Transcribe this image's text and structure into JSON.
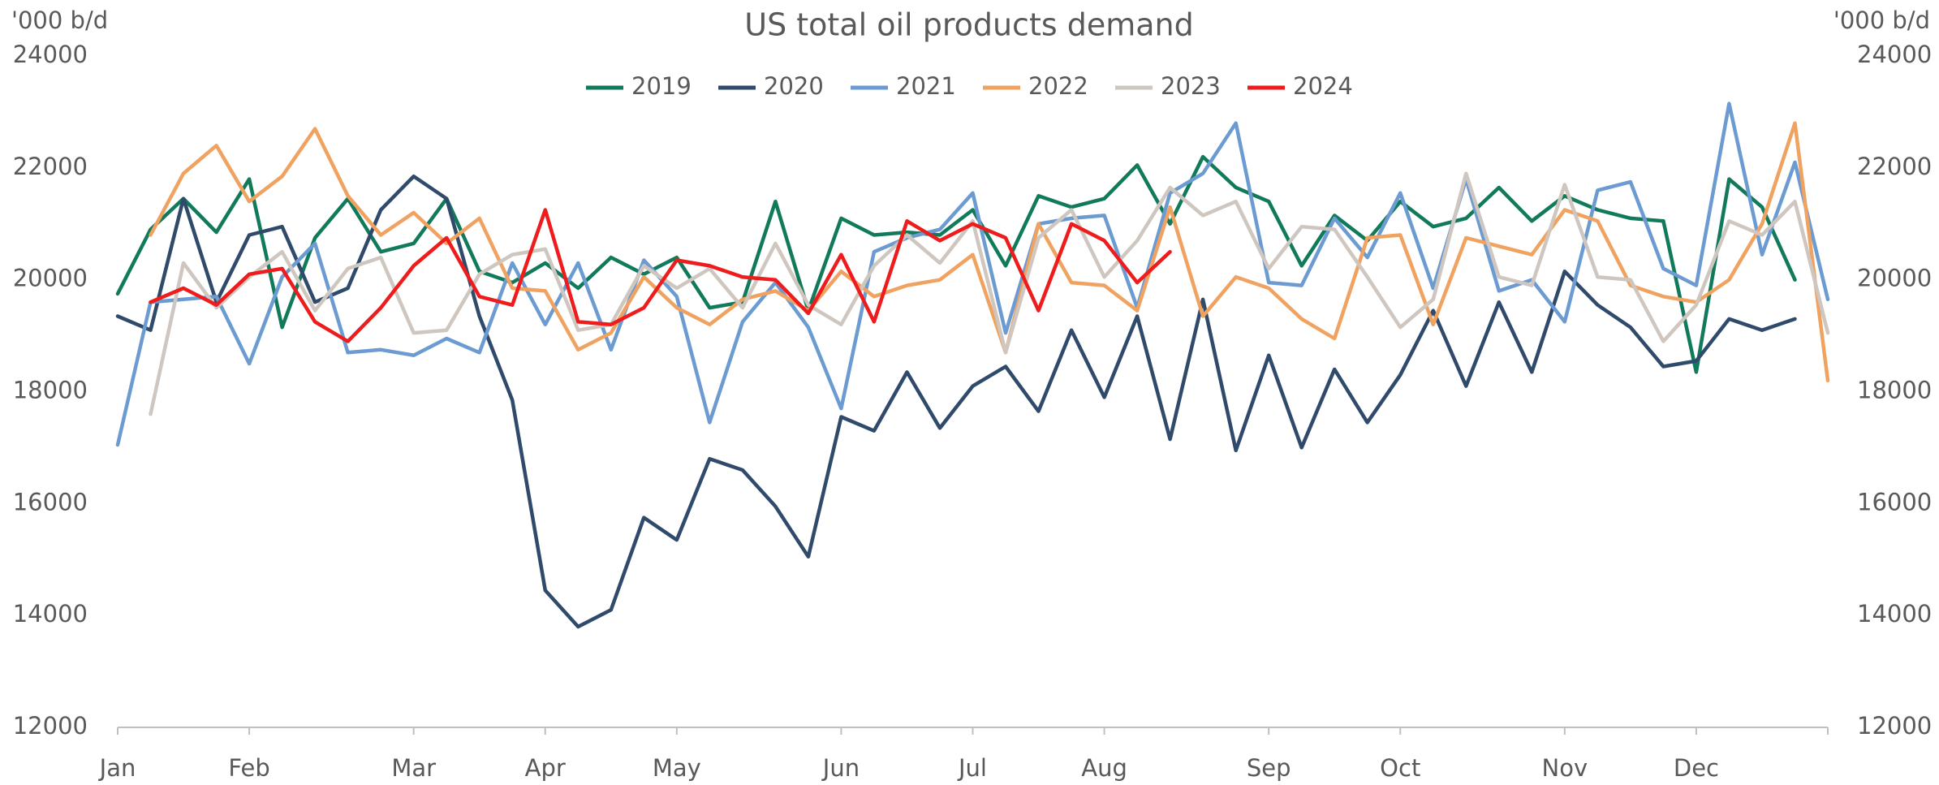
{
  "chart_data": {
    "type": "line",
    "title": "US total oil products demand",
    "y_label": "'000 b/d",
    "y2_label": "'000 b/d",
    "categories": [
      "Jan",
      null,
      null,
      null,
      "Feb",
      null,
      null,
      null,
      null,
      "Mar",
      null,
      null,
      null,
      "Apr",
      null,
      null,
      null,
      "May",
      null,
      null,
      null,
      null,
      "Jun",
      null,
      null,
      null,
      "Jul",
      null,
      null,
      null,
      "Aug",
      null,
      null,
      null,
      null,
      "Sep",
      null,
      null,
      null,
      "Oct",
      null,
      null,
      null,
      null,
      "Nov",
      null,
      null,
      null,
      "Dec",
      null,
      null,
      null,
      null
    ],
    "ylim": [
      12000,
      24000
    ],
    "yticks": [
      12000,
      14000,
      16000,
      18000,
      20000,
      22000,
      24000
    ],
    "y2lim": [
      12000,
      24000
    ],
    "y2ticks": [
      12000,
      14000,
      16000,
      18000,
      20000,
      22000,
      24000
    ],
    "grid": false,
    "legend": "top",
    "series": [
      {
        "name": "2019",
        "color": "#117a5b",
        "values": [
          19750,
          20900,
          21450,
          20850,
          21800,
          19150,
          20750,
          21450,
          20500,
          20650,
          21450,
          20150,
          19950,
          20300,
          19850,
          20400,
          20100,
          20400,
          19500,
          19600,
          21400,
          19450,
          21100,
          20800,
          20850,
          20800,
          21250,
          20250,
          21500,
          21300,
          21450,
          22050,
          21000,
          22200,
          21650,
          21400,
          20250,
          21150,
          20700,
          21400,
          20950,
          21100,
          21650,
          21050,
          21500,
          21250,
          21100,
          21050,
          18350,
          21800,
          21300,
          20000,
          null
        ]
      },
      {
        "name": "2020",
        "color": "#2f4a6a",
        "values": [
          19350,
          19100,
          21450,
          19600,
          20800,
          20950,
          19600,
          19850,
          21250,
          21850,
          21450,
          19350,
          17850,
          14450,
          13800,
          14100,
          15750,
          15350,
          16800,
          16600,
          15950,
          15050,
          17550,
          17300,
          18350,
          17350,
          18100,
          18450,
          17650,
          19100,
          17900,
          19350,
          17150,
          19650,
          16950,
          18650,
          17000,
          18400,
          17450,
          18300,
          19450,
          18100,
          19600,
          18350,
          20150,
          19550,
          19150,
          18450,
          18550,
          19300,
          19100,
          19300,
          null
        ]
      },
      {
        "name": "2021",
        "color": "#6c9bd2",
        "values": [
          17050,
          19600,
          19650,
          19700,
          18500,
          20050,
          20650,
          18700,
          18750,
          18650,
          18950,
          18700,
          20300,
          19200,
          20300,
          18750,
          20350,
          19700,
          17450,
          19250,
          19950,
          19150,
          17700,
          20500,
          20750,
          20900,
          21550,
          19050,
          21000,
          21100,
          21150,
          19500,
          21550,
          21900,
          22800,
          19950,
          19900,
          21100,
          20400,
          21550,
          19850,
          21800,
          19800,
          20000,
          19250,
          21600,
          21750,
          20200,
          19900,
          23150,
          20450,
          22100,
          19650
        ]
      },
      {
        "name": "2022",
        "color": "#f0a261",
        "values": [
          null,
          20800,
          21900,
          22400,
          21400,
          21850,
          22700,
          21500,
          20800,
          21200,
          20650,
          21100,
          19850,
          19800,
          18750,
          19050,
          20050,
          19500,
          19200,
          19650,
          19800,
          19450,
          20150,
          19700,
          19900,
          20000,
          20450,
          18700,
          21000,
          19950,
          19900,
          19450,
          21300,
          19350,
          20050,
          19850,
          19300,
          18950,
          20750,
          20800,
          19200,
          20750,
          20600,
          20450,
          21250,
          21050,
          19900,
          19700,
          19600,
          20000,
          21000,
          22800,
          18200
        ]
      },
      {
        "name": "2023",
        "color": "#cfc7bf",
        "values": [
          null,
          17600,
          20300,
          19500,
          20050,
          20500,
          19450,
          20200,
          20400,
          19050,
          19100,
          20100,
          20450,
          20550,
          19100,
          19200,
          20250,
          19850,
          20200,
          19500,
          20650,
          19550,
          19200,
          20250,
          20800,
          20300,
          21050,
          18700,
          20750,
          21250,
          20050,
          20700,
          21650,
          21150,
          21400,
          20200,
          20950,
          20900,
          20050,
          19150,
          19650,
          21900,
          20050,
          19900,
          21700,
          20050,
          20000,
          18900,
          19550,
          21050,
          20800,
          21400,
          19050
        ]
      },
      {
        "name": "2024",
        "color": "#ee1c1c",
        "values": [
          null,
          19600,
          19850,
          19550,
          20100,
          20200,
          19250,
          18900,
          19500,
          20250,
          20750,
          19700,
          19550,
          21250,
          19250,
          19200,
          19500,
          20350,
          20250,
          20050,
          20000,
          19400,
          20450,
          19250,
          21050,
          20700,
          21000,
          20750,
          19450,
          21000,
          20700,
          19950,
          20500,
          null,
          null,
          null,
          null,
          null,
          null,
          null,
          null,
          null,
          null,
          null,
          null,
          null,
          null,
          null,
          null,
          null,
          null,
          null,
          null
        ]
      }
    ]
  }
}
